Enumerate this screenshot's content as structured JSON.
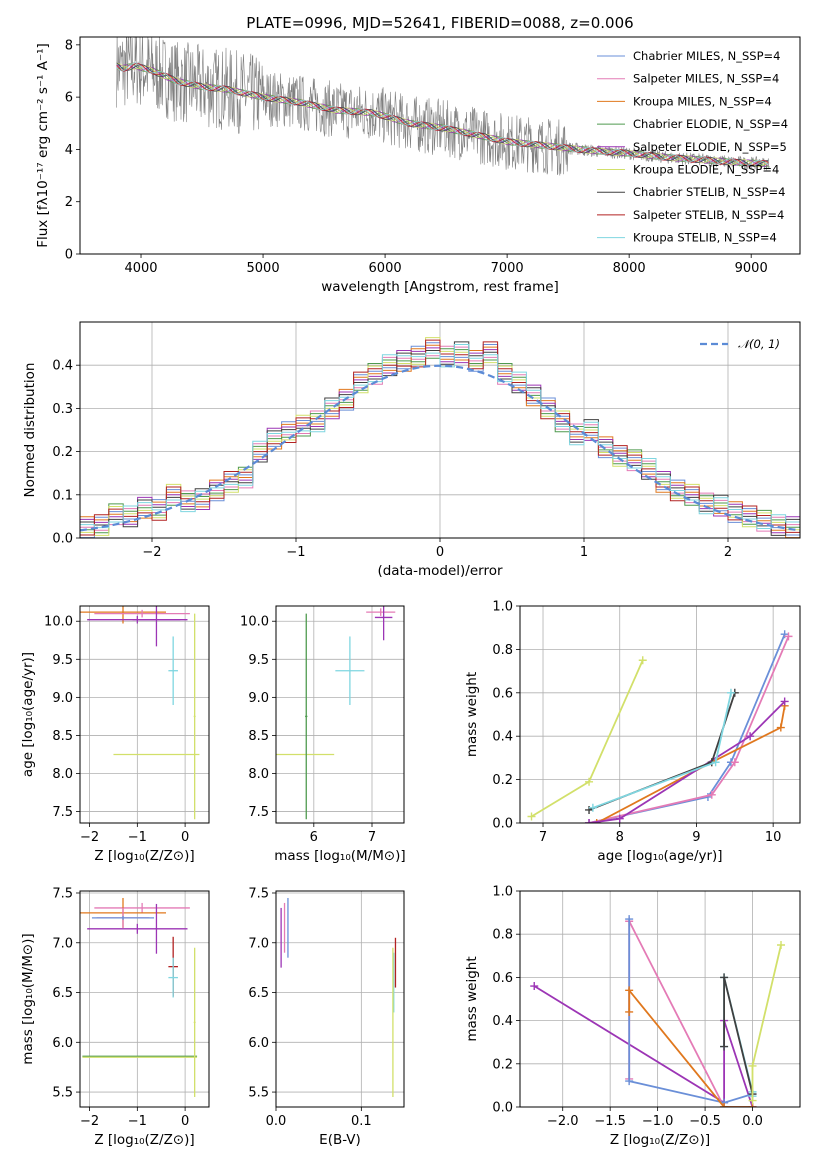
{
  "figure": {
    "title": "PLATE=0996, MJD=52641, FIBERID=0088, z=0.006"
  },
  "chart_data": [
    {
      "id": "spectrum",
      "type": "line",
      "title": "PLATE=0996, MJD=52641, FIBERID=0088, z=0.006",
      "xlabel": "wavelength [Angstrom, rest frame]",
      "ylabel": "Flux [fλ10⁻¹⁷ erg cm⁻² s⁻¹ A⁻¹]",
      "xlim": [
        3500,
        9400
      ],
      "ylim": [
        0,
        8.3
      ],
      "xticks": [
        4000,
        5000,
        6000,
        7000,
        8000,
        9000
      ],
      "yticks": [
        0,
        2,
        4,
        6,
        8
      ],
      "grid": false,
      "legend": "top-right",
      "data_color": "#808080",
      "continuum": {
        "x": [
          3800,
          3850,
          3950,
          4100,
          4300,
          4500,
          4700,
          5000,
          5300,
          5600,
          5900,
          6200,
          6500,
          6800,
          7000,
          7200,
          7400,
          7700,
          8000,
          8300,
          8600,
          8900,
          9150
        ],
        "y": [
          7.2,
          7.1,
          7.2,
          7.0,
          6.6,
          6.4,
          6.3,
          6.0,
          5.8,
          5.5,
          5.4,
          5.0,
          4.8,
          4.5,
          4.3,
          4.2,
          4.1,
          3.95,
          3.85,
          3.7,
          3.6,
          3.5,
          3.45
        ]
      },
      "series": [
        {
          "name": "Chabrier MILES, N_SSP=4",
          "color": "#6a8fd8"
        },
        {
          "name": "Salpeter MILES, N_SSP=4",
          "color": "#e47bb6"
        },
        {
          "name": "Kroupa MILES, N_SSP=4",
          "color": "#e0781e"
        },
        {
          "name": "Chabrier ELODIE, N_SSP=4",
          "color": "#4f9a4f"
        },
        {
          "name": "Salpeter ELODIE, N_SSP=5",
          "color": "#9c35b5"
        },
        {
          "name": "Kroupa ELODIE, N_SSP=4",
          "color": "#d2e06a"
        },
        {
          "name": "Chabrier STELIB, N_SSP=4",
          "color": "#404040"
        },
        {
          "name": "Salpeter STELIB, N_SSP=4",
          "color": "#b22222"
        },
        {
          "name": "Kroupa STELIB, N_SSP=4",
          "color": "#7fd6e0"
        }
      ]
    },
    {
      "id": "residuals",
      "type": "line",
      "xlabel": "(data-model)/error",
      "ylabel": "Normed distribution",
      "xlim": [
        -2.5,
        2.5
      ],
      "ylim": [
        0,
        0.5
      ],
      "xticks": [
        -2,
        -1,
        0,
        1,
        2
      ],
      "yticks": [
        0.0,
        0.1,
        0.2,
        0.3,
        0.4
      ],
      "grid": true,
      "legend": "top-right",
      "gaussian": {
        "name": "𝒩(0, 1)",
        "color": "#5b8bd6"
      },
      "histogram_centers": [
        -2.45,
        -2.35,
        -2.25,
        -2.15,
        -2.05,
        -1.95,
        -1.85,
        -1.75,
        -1.65,
        -1.55,
        -1.45,
        -1.35,
        -1.25,
        -1.15,
        -1.05,
        -0.95,
        -0.85,
        -0.75,
        -0.65,
        -0.55,
        -0.45,
        -0.35,
        -0.25,
        -0.15,
        -0.05,
        0.05,
        0.15,
        0.25,
        0.35,
        0.45,
        0.55,
        0.65,
        0.75,
        0.85,
        0.95,
        1.05,
        1.15,
        1.25,
        1.35,
        1.45,
        1.55,
        1.65,
        1.75,
        1.85,
        1.95,
        2.05,
        2.15,
        2.25,
        2.35,
        2.45
      ],
      "histogram_values": [
        0.025,
        0.03,
        0.055,
        0.05,
        0.07,
        0.065,
        0.1,
        0.085,
        0.09,
        0.11,
        0.13,
        0.14,
        0.2,
        0.23,
        0.245,
        0.26,
        0.27,
        0.3,
        0.32,
        0.36,
        0.38,
        0.4,
        0.41,
        0.42,
        0.44,
        0.42,
        0.43,
        0.41,
        0.43,
        0.38,
        0.36,
        0.33,
        0.3,
        0.27,
        0.24,
        0.25,
        0.21,
        0.19,
        0.18,
        0.16,
        0.13,
        0.11,
        0.1,
        0.08,
        0.075,
        0.06,
        0.05,
        0.04,
        0.03,
        0.025
      ]
    },
    {
      "id": "age-vs-Z",
      "type": "scatter",
      "xlabel": "Z [log₁₀(Z/Z⊙)]",
      "ylabel": "age  [log₁₀(age/yr)]",
      "xlim": [
        -2.2,
        0.5
      ],
      "ylim": [
        7.35,
        10.2
      ],
      "xticks": [
        -2,
        -1,
        0
      ],
      "yticks": [
        7.5,
        8.0,
        8.5,
        9.0,
        9.5,
        10.0
      ],
      "points": [
        {
          "x": -1.3,
          "y": 10.12,
          "xerr": 0.9,
          "yerr": 0.15,
          "color": "#e0781e"
        },
        {
          "x": -0.9,
          "y": 10.1,
          "xerr": 1.0,
          "yerr": 0.05,
          "color": "#e47bb6"
        },
        {
          "x": -1.0,
          "y": 10.02,
          "xerr": 1.05,
          "yerr": 0.05,
          "color": "#9c35b5"
        },
        {
          "x": -0.6,
          "y": 10.02,
          "xerr": 0.5,
          "yerr": 0.35,
          "color": "#9c35b5"
        },
        {
          "x": -0.25,
          "y": 9.35,
          "xerr": 0.1,
          "yerr": 0.45,
          "color": "#7fd6e0"
        },
        {
          "x": -0.6,
          "y": 8.25,
          "xerr": 0.9,
          "yerr": 0.0,
          "color": "#d2e06a"
        },
        {
          "x": 0.2,
          "y": 8.75,
          "xerr": 0.02,
          "yerr": 1.35,
          "color": "#d2e06a"
        }
      ]
    },
    {
      "id": "age-vs-mass",
      "type": "scatter",
      "xlabel": "mass [log₁₀(M/M⊙)]",
      "xlim": [
        5.35,
        7.55
      ],
      "ylim": [
        7.35,
        10.2
      ],
      "xticks": [
        6,
        7
      ],
      "yticks": [
        7.5,
        8.0,
        8.5,
        9.0,
        9.5,
        10.0
      ],
      "points": [
        {
          "x": 7.15,
          "y": 10.12,
          "xerr": 0.25,
          "yerr": 0.05,
          "color": "#e47bb6"
        },
        {
          "x": 7.2,
          "y": 10.05,
          "xerr": 0.15,
          "yerr": 0.3,
          "color": "#9c35b5"
        },
        {
          "x": 6.62,
          "y": 9.35,
          "xerr": 0.25,
          "yerr": 0.45,
          "color": "#7fd6e0"
        },
        {
          "x": 5.85,
          "y": 8.25,
          "xerr": 0.5,
          "yerr": 0.0,
          "color": "#d2e06a"
        },
        {
          "x": 5.87,
          "y": 8.75,
          "xerr": 0.02,
          "yerr": 1.35,
          "color": "#4f9a4f"
        }
      ]
    },
    {
      "id": "massweight-vs-age",
      "type": "line",
      "xlabel": "age  [log₁₀(age/yr)]",
      "ylabel": "mass weight",
      "xlim": [
        6.7,
        10.35
      ],
      "ylim": [
        0,
        1.0
      ],
      "xticks": [
        7,
        8,
        9,
        10
      ],
      "yticks": [
        0.0,
        0.2,
        0.4,
        0.6,
        0.8,
        1.0
      ],
      "grid": true,
      "series": [
        {
          "name": "Kroupa ELODIE",
          "color": "#d2e06a",
          "x": [
            6.85,
            7.6,
            8.3
          ],
          "y": [
            0.03,
            0.19,
            0.75
          ]
        },
        {
          "name": "Chabrier MILES",
          "color": "#6a8fd8",
          "x": [
            7.6,
            9.15,
            9.45,
            10.15
          ],
          "y": [
            0.0,
            0.12,
            0.28,
            0.87
          ]
        },
        {
          "name": "Salpeter MILES",
          "color": "#e47bb6",
          "x": [
            7.6,
            9.2,
            9.5,
            10.2
          ],
          "y": [
            0.0,
            0.13,
            0.28,
            0.86
          ]
        },
        {
          "name": "Kroupa MILES",
          "color": "#e0781e",
          "x": [
            7.7,
            9.2,
            10.1,
            10.15
          ],
          "y": [
            0.0,
            0.28,
            0.44,
            0.54
          ]
        },
        {
          "name": "Salpeter ELODIE",
          "color": "#9c35b5",
          "x": [
            7.6,
            8.0,
            9.7,
            10.15
          ],
          "y": [
            0.0,
            0.02,
            0.4,
            0.56
          ]
        },
        {
          "name": "Chabrier STELIB",
          "color": "#404040",
          "x": [
            7.6,
            9.2,
            9.5
          ],
          "y": [
            0.06,
            0.28,
            0.6
          ]
        },
        {
          "name": "Kroupa STELIB",
          "color": "#7fd6e0",
          "x": [
            7.65,
            9.25,
            9.45
          ],
          "y": [
            0.07,
            0.28,
            0.6
          ]
        }
      ]
    },
    {
      "id": "mass-vs-Z",
      "type": "scatter",
      "xlabel": "Z [log₁₀(Z/Z⊙)]",
      "ylabel": "mass [log₁₀(M/M⊙)]",
      "xlim": [
        -2.2,
        0.5
      ],
      "ylim": [
        5.35,
        7.52
      ],
      "xticks": [
        -2,
        -1,
        0
      ],
      "yticks": [
        5.5,
        6.0,
        6.5,
        7.0,
        7.5
      ],
      "points": [
        {
          "x": -0.9,
          "y": 7.35,
          "xerr": 1.0,
          "yerr": 0.05,
          "color": "#e47bb6"
        },
        {
          "x": -1.3,
          "y": 7.3,
          "xerr": 0.9,
          "yerr": 0.15,
          "color": "#e0781e"
        },
        {
          "x": -1.3,
          "y": 7.25,
          "xerr": 0.55,
          "yerr": 0.1,
          "color": "#e47bb6"
        },
        {
          "x": -1.3,
          "y": 7.25,
          "xerr": 0.65,
          "yerr": 0.02,
          "color": "#6a8fd8"
        },
        {
          "x": -1.0,
          "y": 7.14,
          "xerr": 1.05,
          "yerr": 0.05,
          "color": "#9c35b5"
        },
        {
          "x": -0.6,
          "y": 7.14,
          "xerr": 0.02,
          "yerr": 0.25,
          "color": "#9c35b5"
        },
        {
          "x": -0.25,
          "y": 6.76,
          "xerr": 0.1,
          "yerr": 0.3,
          "color": "#b22222"
        },
        {
          "x": -0.25,
          "y": 6.65,
          "xerr": 0.1,
          "yerr": 0.2,
          "color": "#7fd6e0"
        },
        {
          "x": -0.95,
          "y": 5.86,
          "xerr": 1.2,
          "yerr": 0.0,
          "color": "#4f9a4f"
        },
        {
          "x": -0.95,
          "y": 5.85,
          "xerr": 1.2,
          "yerr": 0.0,
          "color": "#d2e06a"
        },
        {
          "x": 0.2,
          "y": 6.2,
          "xerr": 0.02,
          "yerr": 0.75,
          "color": "#d2e06a"
        }
      ]
    },
    {
      "id": "mass-vs-ebv",
      "type": "scatter",
      "xlabel": "E(B-V)",
      "xlim": [
        0.0,
        0.15
      ],
      "ylim": [
        5.35,
        7.52
      ],
      "xticks": [
        0.0,
        0.1
      ],
      "yticks": [
        5.5,
        6.0,
        6.5,
        7.0,
        7.5
      ],
      "points": [
        {
          "x": 0.006,
          "y": 7.05,
          "xerr": 0.0,
          "yerr": 0.3,
          "color": "#9c35b5"
        },
        {
          "x": 0.01,
          "y": 7.15,
          "xerr": 0.0,
          "yerr": 0.25,
          "color": "#e47bb6"
        },
        {
          "x": 0.014,
          "y": 7.15,
          "xerr": 0.0,
          "yerr": 0.3,
          "color": "#6a8fd8"
        },
        {
          "x": 0.14,
          "y": 6.8,
          "xerr": 0.0,
          "yerr": 0.25,
          "color": "#b22222"
        },
        {
          "x": 0.138,
          "y": 6.6,
          "xerr": 0.0,
          "yerr": 0.3,
          "color": "#7fd6e0"
        },
        {
          "x": 0.137,
          "y": 6.2,
          "xerr": 0.0,
          "yerr": 0.75,
          "color": "#d2e06a"
        }
      ]
    },
    {
      "id": "massweight-vs-Z",
      "type": "line",
      "xlabel": "Z [log₁₀(Z/Z⊙)]",
      "ylabel": "mass weight",
      "xlim": [
        -2.45,
        0.5
      ],
      "ylim": [
        0,
        1.0
      ],
      "xticks": [
        -2.0,
        -1.5,
        -1.0,
        -0.5,
        0.0
      ],
      "yticks": [
        0.0,
        0.2,
        0.4,
        0.6,
        0.8,
        1.0
      ],
      "grid": true,
      "series": [
        {
          "name": "Salpeter ELODIE",
          "color": "#9c35b5",
          "x": [
            -2.3,
            -0.3,
            -0.3,
            0.0
          ],
          "y": [
            0.56,
            0.02,
            0.4,
            0.0
          ]
        },
        {
          "name": "Salpeter MILES",
          "color": "#e47bb6",
          "x": [
            -1.3,
            -1.3,
            -0.3,
            0.0
          ],
          "y": [
            0.13,
            0.86,
            0.0,
            0.0
          ]
        },
        {
          "name": "Chabrier MILES",
          "color": "#6a8fd8",
          "x": [
            -1.3,
            -1.3,
            -0.3,
            0.0
          ],
          "y": [
            0.87,
            0.12,
            0.02,
            0.06
          ]
        },
        {
          "name": "Kroupa MILES",
          "color": "#e0781e",
          "x": [
            -1.3,
            -1.3,
            -0.3,
            0.0
          ],
          "y": [
            0.44,
            0.54,
            0.0,
            0.0
          ]
        },
        {
          "name": "Kroupa STELIB",
          "color": "#7fd6e0",
          "x": [
            -0.3,
            -0.3,
            0.0,
            0.0
          ],
          "y": [
            0.28,
            0.6,
            0.07,
            0.05
          ]
        },
        {
          "name": "Chabrier STELIB",
          "color": "#404040",
          "x": [
            -0.3,
            -0.3,
            0.0
          ],
          "y": [
            0.28,
            0.6,
            0.06
          ]
        },
        {
          "name": "Kroupa ELODIE",
          "color": "#d2e06a",
          "x": [
            0.0,
            0.0,
            0.3
          ],
          "y": [
            0.03,
            0.19,
            0.75
          ]
        }
      ]
    }
  ]
}
